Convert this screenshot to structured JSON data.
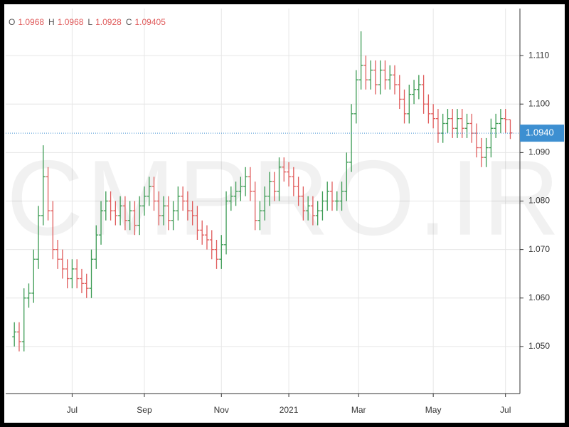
{
  "chart_data": {
    "type": "ohlc",
    "header_labels": [
      "O",
      "H",
      "L",
      "C"
    ],
    "watermark": "CMPRO.IR",
    "up_color": "#3a9a52",
    "down_color": "#e05c5c",
    "open": [
      1.052,
      1.053,
      1.051,
      1.06,
      1.061,
      1.068,
      1.077,
      1.085,
      1.078,
      1.07,
      1.068,
      1.066,
      1.064,
      1.066,
      1.064,
      1.063,
      1.062,
      1.068,
      1.073,
      1.078,
      1.08,
      1.078,
      1.077,
      1.079,
      1.076,
      1.078,
      1.075,
      1.079,
      1.081,
      1.083,
      1.08,
      1.077,
      1.079,
      1.076,
      1.078,
      1.081,
      1.08,
      1.078,
      1.077,
      1.074,
      1.073,
      1.072,
      1.07,
      1.068,
      1.071,
      1.08,
      1.081,
      1.082,
      1.083,
      1.085,
      1.082,
      1.076,
      1.078,
      1.081,
      1.084,
      1.082,
      1.087,
      1.086,
      1.085,
      1.083,
      1.081,
      1.078,
      1.079,
      1.077,
      1.078,
      1.08,
      1.082,
      1.08,
      1.08,
      1.082,
      1.088,
      1.098,
      1.105,
      1.108,
      1.105,
      1.107,
      1.104,
      1.107,
      1.105,
      1.106,
      1.104,
      1.101,
      1.098,
      1.102,
      1.103,
      1.104,
      1.1,
      1.098,
      1.097,
      1.094,
      1.096,
      1.097,
      1.095,
      1.097,
      1.095,
      1.096,
      1.094,
      1.091,
      1.089,
      1.091,
      1.095,
      1.096,
      1.097,
      1.0968
    ],
    "high": [
      1.055,
      1.055,
      1.062,
      1.063,
      1.07,
      1.079,
      1.0915,
      1.087,
      1.08,
      1.072,
      1.07,
      1.068,
      1.068,
      1.068,
      1.066,
      1.065,
      1.07,
      1.075,
      1.08,
      1.082,
      1.082,
      1.08,
      1.081,
      1.081,
      1.08,
      1.08,
      1.081,
      1.083,
      1.085,
      1.085,
      1.082,
      1.081,
      1.081,
      1.08,
      1.083,
      1.083,
      1.082,
      1.08,
      1.079,
      1.076,
      1.075,
      1.074,
      1.072,
      1.073,
      1.082,
      1.083,
      1.084,
      1.085,
      1.087,
      1.087,
      1.084,
      1.08,
      1.083,
      1.086,
      1.086,
      1.089,
      1.089,
      1.088,
      1.087,
      1.085,
      1.083,
      1.081,
      1.081,
      1.08,
      1.082,
      1.084,
      1.084,
      1.082,
      1.084,
      1.09,
      1.1,
      1.107,
      1.115,
      1.11,
      1.109,
      1.109,
      1.109,
      1.109,
      1.108,
      1.108,
      1.106,
      1.103,
      1.104,
      1.105,
      1.106,
      1.106,
      1.102,
      1.1,
      1.099,
      1.098,
      1.099,
      1.099,
      1.099,
      1.099,
      1.098,
      1.098,
      1.096,
      1.093,
      1.093,
      1.097,
      1.098,
      1.099,
      1.099,
      1.0968
    ],
    "low": [
      1.05,
      1.049,
      1.049,
      1.058,
      1.059,
      1.066,
      1.075,
      1.076,
      1.068,
      1.066,
      1.064,
      1.062,
      1.062,
      1.062,
      1.061,
      1.06,
      1.06,
      1.066,
      1.071,
      1.076,
      1.076,
      1.075,
      1.075,
      1.074,
      1.074,
      1.073,
      1.073,
      1.077,
      1.079,
      1.078,
      1.075,
      1.075,
      1.074,
      1.074,
      1.076,
      1.078,
      1.076,
      1.075,
      1.072,
      1.071,
      1.07,
      1.068,
      1.066,
      1.066,
      1.069,
      1.078,
      1.079,
      1.08,
      1.081,
      1.08,
      1.074,
      1.074,
      1.076,
      1.079,
      1.08,
      1.08,
      1.084,
      1.083,
      1.081,
      1.079,
      1.076,
      1.076,
      1.075,
      1.075,
      1.076,
      1.078,
      1.078,
      1.078,
      1.078,
      1.08,
      1.086,
      1.096,
      1.103,
      1.103,
      1.103,
      1.102,
      1.102,
      1.103,
      1.103,
      1.102,
      1.099,
      1.096,
      1.096,
      1.1,
      1.101,
      1.098,
      1.096,
      1.095,
      1.092,
      1.092,
      1.094,
      1.093,
      1.093,
      1.093,
      1.093,
      1.092,
      1.089,
      1.087,
      1.087,
      1.089,
      1.093,
      1.094,
      1.094,
      1.0928
    ],
    "close": [
      1.053,
      1.051,
      1.06,
      1.061,
      1.068,
      1.077,
      1.085,
      1.078,
      1.07,
      1.068,
      1.066,
      1.064,
      1.066,
      1.064,
      1.063,
      1.062,
      1.068,
      1.073,
      1.078,
      1.08,
      1.078,
      1.077,
      1.079,
      1.076,
      1.078,
      1.075,
      1.079,
      1.081,
      1.083,
      1.08,
      1.077,
      1.079,
      1.076,
      1.078,
      1.081,
      1.08,
      1.078,
      1.077,
      1.074,
      1.073,
      1.072,
      1.07,
      1.068,
      1.071,
      1.08,
      1.081,
      1.082,
      1.083,
      1.085,
      1.082,
      1.076,
      1.078,
      1.081,
      1.084,
      1.082,
      1.087,
      1.086,
      1.085,
      1.083,
      1.081,
      1.078,
      1.079,
      1.077,
      1.078,
      1.08,
      1.082,
      1.08,
      1.08,
      1.082,
      1.088,
      1.098,
      1.105,
      1.108,
      1.105,
      1.107,
      1.104,
      1.107,
      1.105,
      1.106,
      1.104,
      1.101,
      1.098,
      1.102,
      1.103,
      1.104,
      1.1,
      1.098,
      1.097,
      1.094,
      1.096,
      1.097,
      1.095,
      1.097,
      1.095,
      1.096,
      1.094,
      1.091,
      1.089,
      1.091,
      1.095,
      1.096,
      1.097,
      1.0968,
      1.09405
    ],
    "xlim": [
      -1.8,
      105
    ],
    "xticks": [
      {
        "value": 12,
        "label": "Jul"
      },
      {
        "value": 27,
        "label": "Sep"
      },
      {
        "value": 43,
        "label": "Nov"
      },
      {
        "value": 57,
        "label": "2021"
      },
      {
        "value": 71.5,
        "label": "Mar"
      },
      {
        "value": 87,
        "label": "May"
      },
      {
        "value": 102,
        "label": "Jul"
      }
    ],
    "ylim": [
      1.0403,
      1.1197
    ],
    "yticks": [
      {
        "value": 1.05,
        "label": "1.050"
      },
      {
        "value": 1.06,
        "label": "1.060"
      },
      {
        "value": 1.07,
        "label": "1.070"
      },
      {
        "value": 1.08,
        "label": "1.080"
      },
      {
        "value": 1.09,
        "label": "1.090"
      },
      {
        "value": 1.1,
        "label": "1.100"
      },
      {
        "value": 1.11,
        "label": "1.110"
      }
    ],
    "grid": true,
    "last_price": {
      "value": 1.094,
      "label": "1.0940"
    },
    "last_price_color": "#3d8fd1"
  }
}
